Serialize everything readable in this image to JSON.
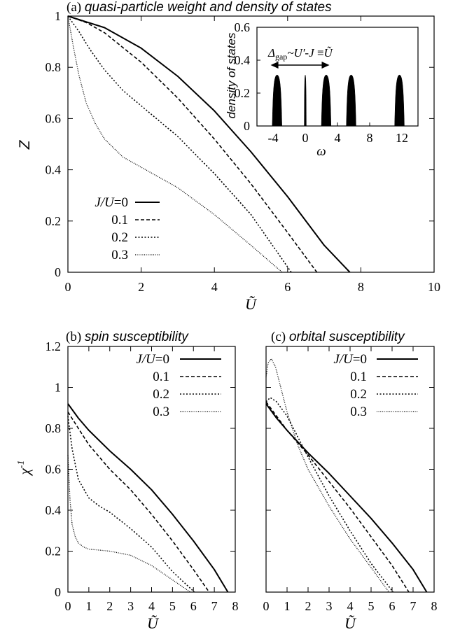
{
  "chart_data": [
    {
      "type": "line",
      "title_prefix": "(a)",
      "title": "quasi-particle weight and density of states",
      "xlabel": "Ũ",
      "ylabel": "Z",
      "xlim": [
        0,
        10
      ],
      "ylim": [
        0,
        1
      ],
      "xticks": [
        "0",
        "2",
        "4",
        "6",
        "8",
        "10"
      ],
      "yticks": [
        "0",
        "0.2",
        "0.4",
        "0.6",
        "0.8",
        "1"
      ],
      "legend_position": "bottom-left",
      "series": [
        {
          "name": "J/U=0",
          "style": "solid",
          "x": [
            0,
            1,
            2,
            3,
            4,
            5,
            6,
            7,
            7.7
          ],
          "y": [
            1.0,
            0.955,
            0.875,
            0.765,
            0.63,
            0.47,
            0.295,
            0.105,
            0.0
          ]
        },
        {
          "name": "0.1",
          "style": "dashed",
          "x": [
            0,
            0.5,
            1,
            2,
            3,
            4,
            5,
            6,
            6.8
          ],
          "y": [
            1.0,
            0.975,
            0.935,
            0.82,
            0.68,
            0.52,
            0.345,
            0.155,
            0.0
          ]
        },
        {
          "name": "0.2",
          "style": "dotted",
          "x": [
            0,
            0.3,
            0.6,
            1,
            1.5,
            2,
            3,
            4,
            5,
            6.1
          ],
          "y": [
            1.0,
            0.94,
            0.87,
            0.79,
            0.71,
            0.65,
            0.53,
            0.385,
            0.225,
            0.0
          ]
        },
        {
          "name": "0.3",
          "style": "fine-dotted",
          "x": [
            0,
            0.15,
            0.3,
            0.5,
            0.75,
            1,
            1.5,
            2,
            3,
            4,
            5,
            5.85
          ],
          "y": [
            1.0,
            0.88,
            0.77,
            0.66,
            0.58,
            0.52,
            0.45,
            0.41,
            0.33,
            0.225,
            0.105,
            0.0
          ]
        }
      ],
      "inset": {
        "type": "bar",
        "ylabel": "density of states",
        "xlabel": "ω",
        "xlim": [
          -6,
          14
        ],
        "ylim": [
          0,
          0.6
        ],
        "xticks": [
          "-4",
          "0",
          "4",
          "8",
          "12"
        ],
        "yticks": [
          "0",
          "0.2",
          "0.4",
          "0.6"
        ],
        "peaks": [
          {
            "center": -3.5,
            "height": 0.31,
            "width": 1.2
          },
          {
            "center": 0,
            "height": 0.31,
            "width": 0.25
          },
          {
            "center": 2.6,
            "height": 0.31,
            "width": 1.2
          },
          {
            "center": 5.7,
            "height": 0.31,
            "width": 1.2
          },
          {
            "center": 11.7,
            "height": 0.31,
            "width": 1.2
          }
        ],
        "arrow_from": -4.3,
        "arrow_to": 3.0,
        "annotation": {
          "delta": "Δ",
          "sub": "gap",
          "rest": "~U'-J",
          "equiv": " ≡",
          "utilde": "Ũ"
        }
      }
    },
    {
      "type": "line",
      "title_prefix": "(b)",
      "title": "spin susceptibility",
      "xlabel": "Ũ",
      "ylabel": "χ",
      "ylabel_sup": "-1",
      "xlim": [
        0,
        8
      ],
      "ylim": [
        0,
        1.2
      ],
      "xticks": [
        "0",
        "1",
        "2",
        "3",
        "4",
        "5",
        "6",
        "7",
        "8"
      ],
      "yticks": [
        "0",
        "0.2",
        "0.4",
        "0.6",
        "0.8",
        "1",
        "1.2"
      ],
      "legend_position": "top-right",
      "series": [
        {
          "name": "J/U=0",
          "style": "solid",
          "x": [
            0,
            0.5,
            1,
            2,
            3,
            4,
            5,
            6,
            7,
            7.65
          ],
          "y": [
            0.92,
            0.85,
            0.79,
            0.69,
            0.6,
            0.5,
            0.38,
            0.25,
            0.11,
            0.0
          ]
        },
        {
          "name": "0.1",
          "style": "dashed",
          "x": [
            0,
            0.5,
            1,
            2,
            3,
            4,
            5,
            6,
            6.75
          ],
          "y": [
            0.88,
            0.8,
            0.72,
            0.6,
            0.5,
            0.38,
            0.25,
            0.11,
            0.0
          ]
        },
        {
          "name": "0.2",
          "style": "dotted",
          "x": [
            0,
            0.2,
            0.5,
            1,
            1.5,
            2,
            3,
            4,
            5,
            6.05
          ],
          "y": [
            0.86,
            0.7,
            0.55,
            0.46,
            0.42,
            0.39,
            0.31,
            0.22,
            0.1,
            0.0
          ]
        },
        {
          "name": "0.3",
          "style": "fine-dotted",
          "x": [
            0,
            0.1,
            0.2,
            0.35,
            0.5,
            0.75,
            1,
            1.5,
            2,
            3,
            4,
            5,
            5.85
          ],
          "y": [
            0.67,
            0.45,
            0.33,
            0.27,
            0.24,
            0.22,
            0.21,
            0.205,
            0.2,
            0.18,
            0.13,
            0.06,
            0.0
          ]
        }
      ]
    },
    {
      "type": "line",
      "title_prefix": "(c)",
      "title": "orbital susceptibility",
      "xlabel": "Ũ",
      "xlim": [
        0,
        8
      ],
      "ylim": [
        0,
        1.2
      ],
      "xticks": [
        "0",
        "1",
        "2",
        "3",
        "4",
        "5",
        "6",
        "7",
        "8"
      ],
      "legend_position": "top-right",
      "series": [
        {
          "name": "J/U=0",
          "style": "solid",
          "x": [
            0,
            0.5,
            1,
            2,
            3,
            4,
            5,
            6,
            7,
            7.65
          ],
          "y": [
            0.92,
            0.85,
            0.79,
            0.68,
            0.58,
            0.47,
            0.36,
            0.24,
            0.11,
            0.0
          ]
        },
        {
          "name": "0.1",
          "style": "dashed",
          "x": [
            0,
            0.5,
            1,
            2,
            3,
            4,
            5,
            6,
            6.8
          ],
          "y": [
            0.93,
            0.86,
            0.79,
            0.67,
            0.54,
            0.41,
            0.27,
            0.13,
            0.0
          ]
        },
        {
          "name": "0.2",
          "style": "dotted",
          "x": [
            0,
            0.2,
            0.5,
            1,
            1.5,
            2,
            3,
            4,
            5,
            6.05
          ],
          "y": [
            0.93,
            0.95,
            0.93,
            0.86,
            0.76,
            0.66,
            0.47,
            0.3,
            0.14,
            0.0
          ]
        },
        {
          "name": "0.3",
          "style": "fine-dotted",
          "x": [
            0,
            0.1,
            0.25,
            0.45,
            0.75,
            1,
            1.5,
            2,
            3,
            4,
            5,
            5.85
          ],
          "y": [
            1.05,
            1.12,
            1.14,
            1.1,
            0.98,
            0.88,
            0.72,
            0.6,
            0.42,
            0.26,
            0.12,
            0.0
          ]
        }
      ]
    }
  ]
}
